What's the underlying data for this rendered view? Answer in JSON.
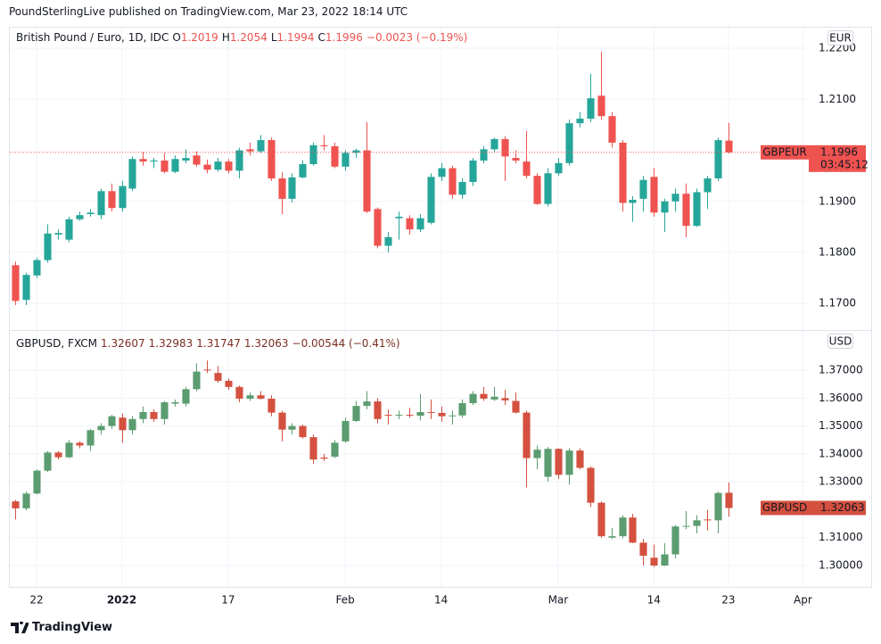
{
  "header": "PoundSterlingLive published on TradingView.com, Mar 23, 2022 18:14 UTC",
  "footer": "TradingView",
  "chart_data": [
    {
      "type": "candlestick",
      "title": "British Pound / Euro, 1D, IDC",
      "currency": "EUR",
      "legend_values": [
        {
          "key": "O",
          "value": "1.2019"
        },
        {
          "key": "H",
          "value": "1.2054"
        },
        {
          "key": "L",
          "value": "1.1994"
        },
        {
          "key": "C",
          "value": "1.1996"
        }
      ],
      "change": "−0.0023 (−0.19%)",
      "legend_color": "#ef5350",
      "up_color": "#26a69a",
      "down_color": "#ef5350",
      "grid": true,
      "price_line": true,
      "ylim": [
        1.1648,
        1.2242
      ],
      "yticks": [
        {
          "value": 1.17,
          "label": "1.1700"
        },
        {
          "value": 1.18,
          "label": "1.1800"
        },
        {
          "value": 1.19,
          "label": "1.1900"
        },
        {
          "value": 1.21,
          "label": "1.2100"
        },
        {
          "value": 1.22,
          "label": "1.2200"
        }
      ],
      "xlim": [
        -0.6,
        80.5
      ],
      "last_label": {
        "name": "GBPEUR",
        "price": "1.1996",
        "countdown": "03:45:12"
      },
      "open": [
        1.1775,
        1.1707,
        1.1755,
        1.1785,
        1.1835,
        1.1825,
        1.1865,
        1.1875,
        1.1873,
        1.192,
        1.1887,
        1.1925,
        1.1983,
        1.1978,
        1.198,
        1.1958,
        1.198,
        1.199,
        1.1972,
        1.1962,
        1.1978,
        1.196,
        1.2002,
        1.1998,
        1.202,
        1.1945,
        1.1905,
        1.1947,
        1.1973,
        1.201,
        1.2008,
        1.1968,
        1.1995,
        1.2,
        1.1885,
        1.1813,
        1.1867,
        1.1867,
        1.1845,
        1.1858,
        1.1948,
        1.1965,
        1.1913,
        1.1938,
        1.198,
        1.2002,
        1.2022,
        1.1985,
        1.1978,
        1.195,
        1.1895,
        1.1955,
        1.1975,
        1.2053,
        1.2062,
        1.2107,
        1.2067,
        1.2015,
        1.1897,
        1.1905,
        1.1948,
        1.1878,
        1.19,
        1.1915,
        1.1852,
        1.1918,
        1.1945,
        1.2019
      ],
      "high": [
        1.1782,
        1.176,
        1.179,
        1.1855,
        1.1845,
        1.187,
        1.188,
        1.1885,
        1.1925,
        1.1935,
        1.194,
        1.1988,
        1.1997,
        1.1985,
        1.1995,
        1.199,
        1.2002,
        1.1998,
        1.1982,
        1.1985,
        1.1983,
        1.2005,
        1.2015,
        1.203,
        1.2025,
        1.1957,
        1.1955,
        1.198,
        1.2015,
        1.203,
        1.2015,
        1.2,
        1.2003,
        1.2055,
        1.1888,
        1.184,
        1.188,
        1.1873,
        1.1875,
        1.1955,
        1.1975,
        1.197,
        1.1945,
        1.1985,
        1.2008,
        1.2025,
        1.2028,
        1.2,
        1.2038,
        1.1955,
        1.1965,
        1.1985,
        1.206,
        1.2075,
        1.215,
        1.2193,
        1.2075,
        1.202,
        1.191,
        1.195,
        1.1965,
        1.1905,
        1.1925,
        1.1935,
        1.1925,
        1.195,
        1.2025,
        1.2054
      ],
      "low": [
        1.1697,
        1.1697,
        1.175,
        1.178,
        1.1825,
        1.182,
        1.1862,
        1.187,
        1.1865,
        1.188,
        1.188,
        1.192,
        1.197,
        1.1965,
        1.1955,
        1.1955,
        1.1975,
        1.1968,
        1.1955,
        1.1958,
        1.1955,
        1.1945,
        1.199,
        1.1995,
        1.194,
        1.1875,
        1.1898,
        1.1945,
        1.197,
        1.2,
        1.1965,
        1.196,
        1.1985,
        1.1877,
        1.1808,
        1.18,
        1.1825,
        1.1835,
        1.184,
        1.1855,
        1.194,
        1.1905,
        1.1905,
        1.193,
        1.1975,
        1.1995,
        1.194,
        1.1975,
        1.1945,
        1.1893,
        1.189,
        1.195,
        1.197,
        1.2045,
        1.2055,
        1.206,
        1.2005,
        1.188,
        1.186,
        1.188,
        1.187,
        1.184,
        1.188,
        1.183,
        1.185,
        1.1885,
        1.194,
        1.1994
      ],
      "close": [
        1.1705,
        1.1756,
        1.1785,
        1.1837,
        1.1838,
        1.1865,
        1.1873,
        1.1878,
        1.192,
        1.1887,
        1.193,
        1.1983,
        1.1978,
        1.198,
        1.1958,
        1.1983,
        1.1985,
        1.1972,
        1.1962,
        1.1978,
        1.196,
        1.2,
        1.1998,
        1.202,
        1.1945,
        1.1905,
        1.1947,
        1.1973,
        1.201,
        1.2008,
        1.1968,
        1.1995,
        1.2,
        1.188,
        1.1813,
        1.183,
        1.187,
        1.1845,
        1.1867,
        1.1948,
        1.1965,
        1.1913,
        1.1938,
        1.198,
        1.2002,
        1.2022,
        1.1988,
        1.198,
        1.195,
        1.1895,
        1.1955,
        1.1975,
        1.2053,
        1.2062,
        1.2102,
        1.2067,
        1.2015,
        1.1897,
        1.1903,
        1.1942,
        1.1878,
        1.19,
        1.1915,
        1.1852,
        1.1918,
        1.1945,
        1.202,
        1.1996
      ]
    },
    {
      "type": "candlestick",
      "title": "GBPUSD, FXCM",
      "currency": "USD",
      "legend_values": [
        {
          "value": "1.32607"
        },
        {
          "value": "1.32983"
        },
        {
          "value": "1.31747"
        },
        {
          "value": "1.32063"
        }
      ],
      "change": "−0.00544 (−0.41%)",
      "legend_color": "#7a2e22",
      "up_color": "#5b9c70",
      "down_color": "#d4503f",
      "grid": true,
      "price_line": false,
      "ylim": [
        1.29233,
        1.3844
      ],
      "yticks": [
        {
          "value": 1.3,
          "label": "1.30000"
        },
        {
          "value": 1.31,
          "label": "1.31000"
        },
        {
          "value": 1.33,
          "label": "1.33000"
        },
        {
          "value": 1.34,
          "label": "1.34000"
        },
        {
          "value": 1.35,
          "label": "1.35000"
        },
        {
          "value": 1.36,
          "label": "1.36000"
        },
        {
          "value": 1.37,
          "label": "1.37000"
        }
      ],
      "xlim": [
        -0.6,
        80.5
      ],
      "xticks": [
        {
          "value": 2,
          "label": "22"
        },
        {
          "value": 10,
          "label": "2022"
        },
        {
          "value": 20,
          "label": "17"
        },
        {
          "value": 31,
          "label": "Feb"
        },
        {
          "value": 40,
          "label": "14"
        },
        {
          "value": 51,
          "label": "Mar"
        },
        {
          "value": 60,
          "label": "14"
        },
        {
          "value": 67,
          "label": "23"
        },
        {
          "value": 74,
          "label": "Apr"
        }
      ],
      "last_label": {
        "name": "GBPUSD",
        "price": "1.32063"
      },
      "open": [
        1.323,
        1.3205,
        1.3258,
        1.334,
        1.3405,
        1.3388,
        1.344,
        1.343,
        1.3485,
        1.35,
        1.353,
        1.3485,
        1.3525,
        1.355,
        1.3525,
        1.358,
        1.358,
        1.3632,
        1.3702,
        1.369,
        1.3662,
        1.364,
        1.3598,
        1.361,
        1.3598,
        1.3548,
        1.3487,
        1.35,
        1.346,
        1.3387,
        1.339,
        1.3445,
        1.3518,
        1.3572,
        1.3588,
        1.354,
        1.3537,
        1.354,
        1.3537,
        1.355,
        1.3547,
        1.3535,
        1.3538,
        1.3582,
        1.3615,
        1.3595,
        1.36,
        1.359,
        1.3548,
        1.3385,
        1.3318,
        1.3418,
        1.3325,
        1.3412,
        1.335,
        1.3225,
        1.31,
        1.3105,
        1.3172,
        1.3082,
        1.3028,
        1.3,
        1.304,
        1.314,
        1.3142,
        1.3165,
        1.3162,
        1.32607
      ],
      "high": [
        1.3235,
        1.3265,
        1.3345,
        1.341,
        1.341,
        1.345,
        1.3445,
        1.349,
        1.351,
        1.354,
        1.3545,
        1.3535,
        1.357,
        1.356,
        1.359,
        1.3595,
        1.364,
        1.3725,
        1.3735,
        1.3715,
        1.367,
        1.3645,
        1.362,
        1.3625,
        1.361,
        1.3555,
        1.351,
        1.3505,
        1.347,
        1.34,
        1.345,
        1.353,
        1.359,
        1.3625,
        1.36,
        1.356,
        1.3555,
        1.3565,
        1.3615,
        1.3595,
        1.357,
        1.3555,
        1.3595,
        1.3625,
        1.364,
        1.364,
        1.363,
        1.362,
        1.3555,
        1.343,
        1.3425,
        1.342,
        1.342,
        1.342,
        1.3355,
        1.323,
        1.3135,
        1.318,
        1.3185,
        1.3095,
        1.3075,
        1.308,
        1.3145,
        1.3195,
        1.318,
        1.32,
        1.3265,
        1.32983
      ],
      "low": [
        1.3165,
        1.3198,
        1.3255,
        1.3335,
        1.338,
        1.3385,
        1.342,
        1.341,
        1.347,
        1.349,
        1.344,
        1.347,
        1.351,
        1.3515,
        1.3505,
        1.357,
        1.357,
        1.3625,
        1.369,
        1.3655,
        1.363,
        1.3585,
        1.359,
        1.3595,
        1.3535,
        1.3445,
        1.347,
        1.3455,
        1.3365,
        1.3375,
        1.3385,
        1.344,
        1.3515,
        1.356,
        1.351,
        1.3505,
        1.3525,
        1.353,
        1.352,
        1.3525,
        1.3515,
        1.3505,
        1.353,
        1.3575,
        1.359,
        1.359,
        1.3575,
        1.3545,
        1.328,
        1.3345,
        1.33,
        1.331,
        1.329,
        1.3345,
        1.321,
        1.31,
        1.3095,
        1.3098,
        1.308,
        1.3,
        1.2995,
        1.2998,
        1.3025,
        1.313,
        1.3115,
        1.3125,
        1.3115,
        1.31747
      ],
      "close": [
        1.3205,
        1.3258,
        1.334,
        1.3405,
        1.3388,
        1.344,
        1.343,
        1.3485,
        1.35,
        1.3535,
        1.3485,
        1.3525,
        1.355,
        1.3525,
        1.3585,
        1.3585,
        1.3632,
        1.3695,
        1.37,
        1.3662,
        1.364,
        1.3598,
        1.361,
        1.3598,
        1.3548,
        1.3487,
        1.35,
        1.346,
        1.338,
        1.3383,
        1.344,
        1.3518,
        1.3572,
        1.3588,
        1.3525,
        1.3537,
        1.354,
        1.3537,
        1.355,
        1.3547,
        1.3535,
        1.3538,
        1.3582,
        1.3615,
        1.3598,
        1.3605,
        1.3592,
        1.3548,
        1.3385,
        1.3415,
        1.3418,
        1.3325,
        1.3412,
        1.335,
        1.3225,
        1.3105,
        1.3105,
        1.3172,
        1.3082,
        1.3035,
        1.3,
        1.304,
        1.314,
        1.3142,
        1.3162,
        1.3162,
        1.326,
        1.32063
      ]
    }
  ]
}
